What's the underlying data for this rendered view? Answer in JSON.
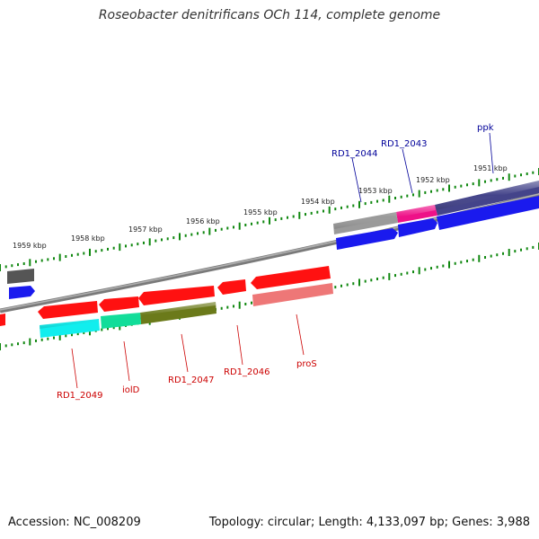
{
  "title": "Roseobacter denitrificans OCh 114, complete genome",
  "footer": {
    "accession": "Accession: NC_008209",
    "topology": "Topology: circular; Length: 4,133,097 bp; Genes: 3,988"
  },
  "kbp_labels": [
    "1951 kbp",
    "1952 kbp",
    "1953 kbp",
    "1954 kbp",
    "1955 kbp",
    "1956 kbp",
    "1957 kbp",
    "1958 kbp",
    "1959 kbp"
  ],
  "labels": {
    "ppk": "ppk",
    "rd1_2043": "RD1_2043",
    "rd1_2044": "RD1_2044",
    "rd1_2049": "RD1_2049",
    "iolD": "iolD",
    "rd1_2047": "RD1_2047",
    "rd1_2046": "RD1_2046",
    "proS": "proS"
  },
  "colors": {
    "backbone": "#808080",
    "tick": "#118811",
    "forward_label": "#000099",
    "reverse_label": "#cc0000",
    "gene_red": "#ff1111",
    "gene_blue": "#1a1aee",
    "gene_darkblue": "#44448a",
    "gene_magenta": "#ee1188",
    "gene_gray": "#9a9a9a",
    "gene_cyan": "#11eeee",
    "gene_teal": "#11dd99",
    "gene_olive": "#6b7a1a",
    "gene_pink": "#ee7777",
    "gene_darkgray": "#555555"
  }
}
